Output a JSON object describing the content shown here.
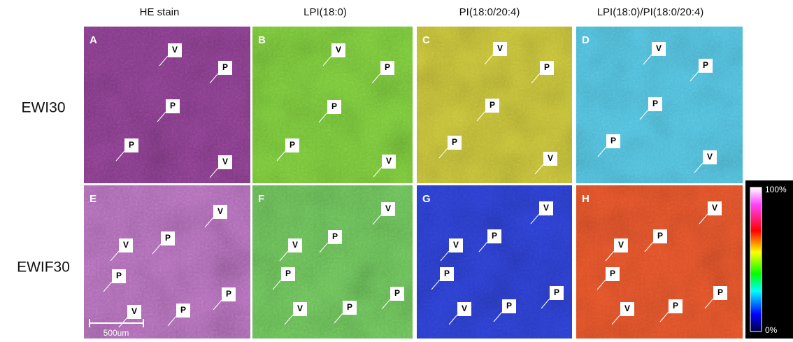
{
  "columns": [
    "HE stain",
    "LPI(18:0)",
    "PI(18:0/20:4)",
    "LPI(18:0)/PI(18:0/20:4)"
  ],
  "rows": [
    "EWI30",
    "EWIF30"
  ],
  "panels": [
    {
      "letter": "A",
      "markers": [
        "V",
        "P",
        "P",
        "P",
        "V"
      ]
    },
    {
      "letter": "B",
      "markers": [
        "V",
        "P",
        "P",
        "P",
        "V"
      ]
    },
    {
      "letter": "C",
      "markers": [
        "V",
        "P",
        "P",
        "P",
        "V"
      ]
    },
    {
      "letter": "D",
      "markers": [
        "V",
        "P",
        "P",
        "P",
        "V"
      ]
    },
    {
      "letter": "E",
      "markers": [
        "V",
        "P",
        "V",
        "P",
        "P",
        "V",
        "P"
      ]
    },
    {
      "letter": "F",
      "markers": [
        "V",
        "P",
        "V",
        "P",
        "P",
        "V",
        "P"
      ]
    },
    {
      "letter": "G",
      "markers": [
        "V",
        "P",
        "V",
        "P",
        "P",
        "V",
        "P"
      ]
    },
    {
      "letter": "H",
      "markers": [
        "V",
        "P",
        "V",
        "P",
        "P",
        "V",
        "P"
      ]
    }
  ],
  "scale_bar": "500um",
  "colorbar": {
    "max_label": "100%",
    "min_label": "0%"
  }
}
